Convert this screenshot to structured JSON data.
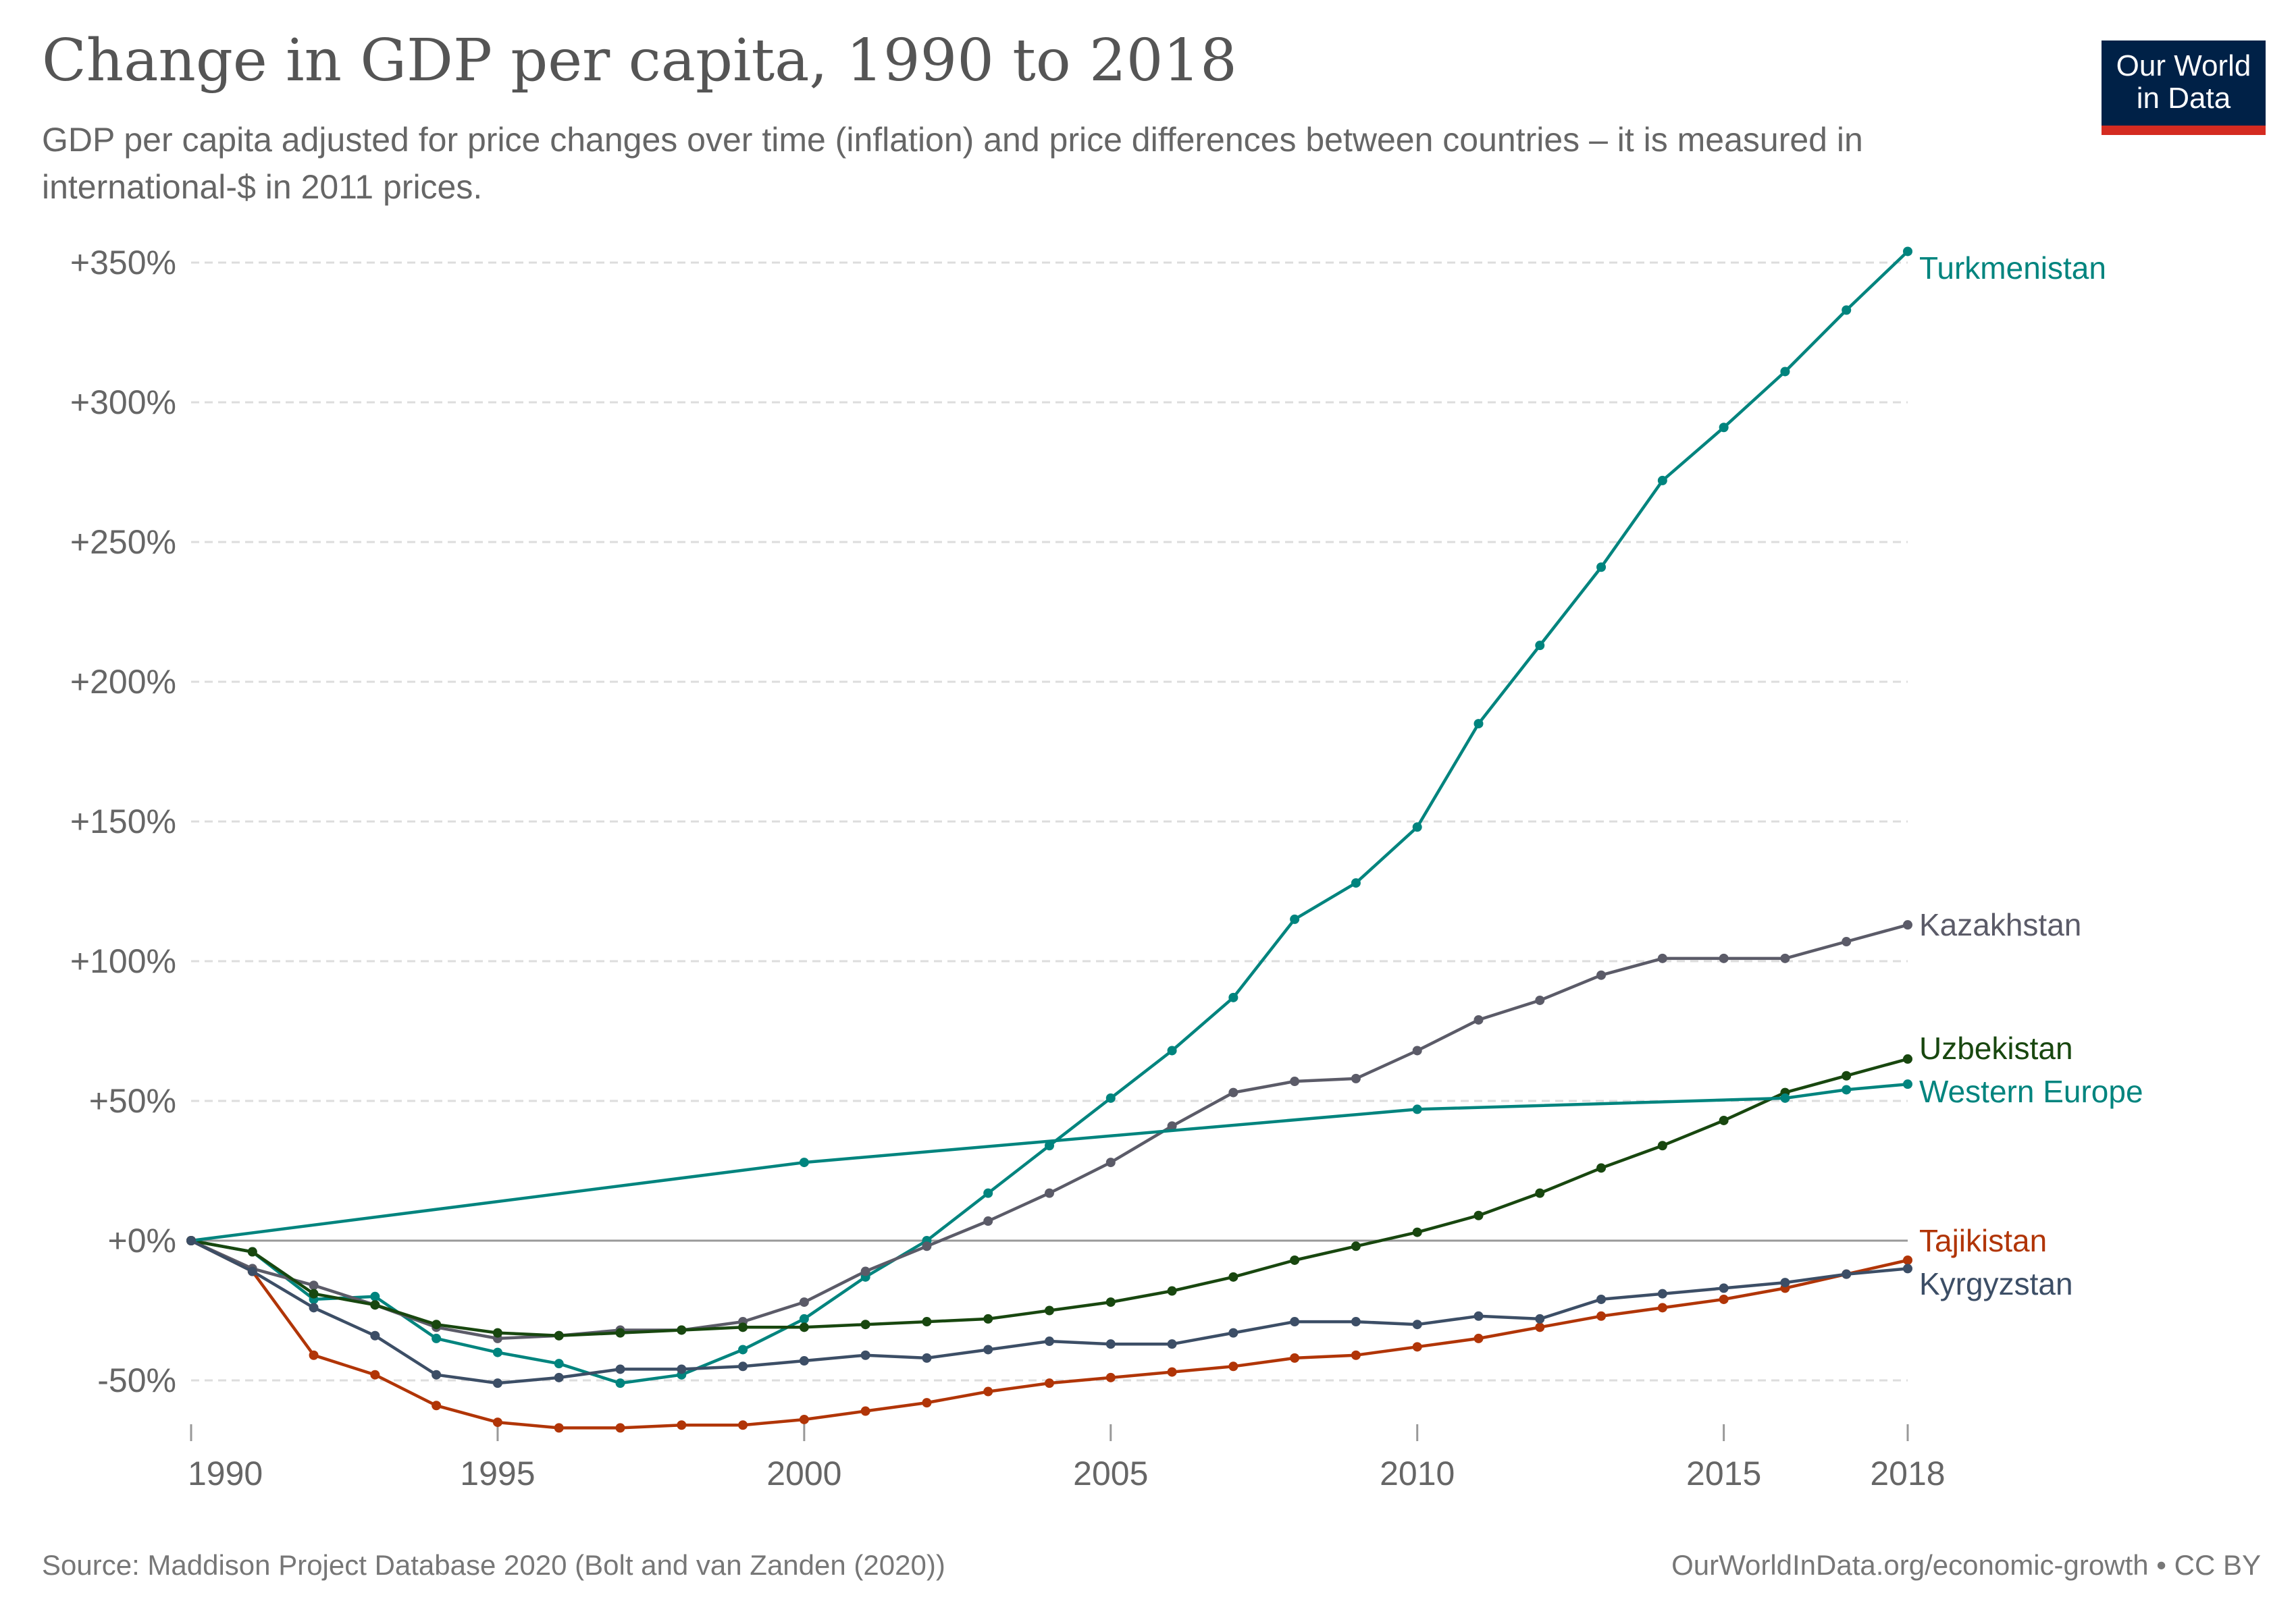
{
  "title": "Change in GDP per capita, 1990 to 2018",
  "subtitle": "GDP per capita adjusted for price changes over time (inflation) and price differences between countries – it is measured in international-$ in 2011 prices.",
  "logo": {
    "line1": "Our World",
    "line2": "in Data",
    "bg": "#002147",
    "accent": "#d42b21"
  },
  "footer": {
    "source": "Source: Maddison Project Database 2020 (Bolt and van Zanden (2020))",
    "license": "OurWorldInData.org/economic-growth • CC BY"
  },
  "chart_data": {
    "type": "line",
    "xlim": [
      1990,
      2018
    ],
    "ylim": [
      -70,
      360
    ],
    "grid": "horizontal dashed",
    "x_ticks": [
      1990,
      1995,
      2000,
      2005,
      2010,
      2015,
      2018
    ],
    "x_tick_labels": [
      "1990",
      "1995",
      "2000",
      "2005",
      "2010",
      "2015",
      "2018"
    ],
    "y_ticks": [
      -50,
      0,
      50,
      100,
      150,
      200,
      250,
      300,
      350
    ],
    "y_tick_labels": [
      "-50%",
      "+0%",
      "+50%",
      "+100%",
      "+150%",
      "+200%",
      "+250%",
      "+300%",
      "+350%"
    ],
    "legend": "inline labels at line ends (right)",
    "series": [
      {
        "name": "Turkmenistan",
        "color": "#00847e",
        "x": [
          1990,
          1991,
          1992,
          1993,
          1994,
          1995,
          1996,
          1997,
          1998,
          1999,
          2000,
          2001,
          2002,
          2003,
          2004,
          2005,
          2006,
          2007,
          2008,
          2009,
          2010,
          2011,
          2012,
          2013,
          2014,
          2015,
          2016,
          2017,
          2018
        ],
        "y": [
          0,
          -4,
          -21,
          -20,
          -35,
          -40,
          -44,
          -51,
          -48,
          -39,
          -28,
          -13,
          0,
          17,
          34,
          51,
          68,
          87,
          115,
          128,
          148,
          185,
          213,
          241,
          272,
          291,
          311,
          333,
          354
        ]
      },
      {
        "name": "Kazakhstan",
        "color": "#5b5b68",
        "x": [
          1990,
          1991,
          1992,
          1993,
          1994,
          1995,
          1996,
          1997,
          1998,
          1999,
          2000,
          2001,
          2002,
          2003,
          2004,
          2005,
          2006,
          2007,
          2008,
          2009,
          2010,
          2011,
          2012,
          2013,
          2014,
          2015,
          2016,
          2017,
          2018
        ],
        "y": [
          0,
          -10,
          -16,
          -23,
          -31,
          -35,
          -34,
          -32,
          -32,
          -29,
          -22,
          -11,
          -2,
          7,
          17,
          28,
          41,
          53,
          57,
          58,
          68,
          79,
          86,
          95,
          101,
          101,
          101,
          107,
          113
        ]
      },
      {
        "name": "Uzbekistan",
        "color": "#18470f",
        "x": [
          1990,
          1991,
          1992,
          1993,
          1994,
          1995,
          1996,
          1997,
          1998,
          1999,
          2000,
          2001,
          2002,
          2003,
          2004,
          2005,
          2006,
          2007,
          2008,
          2009,
          2010,
          2011,
          2012,
          2013,
          2014,
          2015,
          2016,
          2017,
          2018
        ],
        "y": [
          0,
          -4,
          -19,
          -23,
          -30,
          -33,
          -34,
          -33,
          -32,
          -31,
          -31,
          -30,
          -29,
          -28,
          -25,
          -22,
          -18,
          -13,
          -7,
          -2,
          3,
          9,
          17,
          26,
          34,
          43,
          53,
          59,
          65
        ]
      },
      {
        "name": "Western Europe",
        "color": "#00847e",
        "x": [
          1990,
          2000,
          2010,
          2016,
          2017,
          2018
        ],
        "y": [
          0,
          28,
          47,
          51,
          54,
          56
        ]
      },
      {
        "name": "Tajikistan",
        "color": "#b13507",
        "x": [
          1990,
          1991,
          1992,
          1993,
          1994,
          1995,
          1996,
          1997,
          1998,
          1999,
          2000,
          2001,
          2002,
          2003,
          2004,
          2005,
          2006,
          2007,
          2008,
          2009,
          2010,
          2011,
          2012,
          2013,
          2014,
          2015,
          2016,
          2017,
          2018
        ],
        "y": [
          0,
          -11,
          -41,
          -48,
          -59,
          -65,
          -67,
          -67,
          -66,
          -66,
          -64,
          -61,
          -58,
          -54,
          -51,
          -49,
          -47,
          -45,
          -42,
          -41,
          -38,
          -35,
          -31,
          -27,
          -24,
          -21,
          -17,
          -12,
          -7
        ]
      },
      {
        "name": "Kyrgyzstan",
        "color": "#3c4e66",
        "x": [
          1990,
          1991,
          1992,
          1993,
          1994,
          1995,
          1996,
          1997,
          1998,
          1999,
          2000,
          2001,
          2002,
          2003,
          2004,
          2005,
          2006,
          2007,
          2008,
          2009,
          2010,
          2011,
          2012,
          2013,
          2014,
          2015,
          2016,
          2017,
          2018
        ],
        "y": [
          0,
          -11,
          -24,
          -34,
          -48,
          -51,
          -49,
          -46,
          -46,
          -45,
          -43,
          -41,
          -42,
          -39,
          -36,
          -37,
          -37,
          -33,
          -29,
          -29,
          -30,
          -27,
          -28,
          -21,
          -19,
          -17,
          -15,
          -12,
          -10
        ]
      }
    ]
  }
}
